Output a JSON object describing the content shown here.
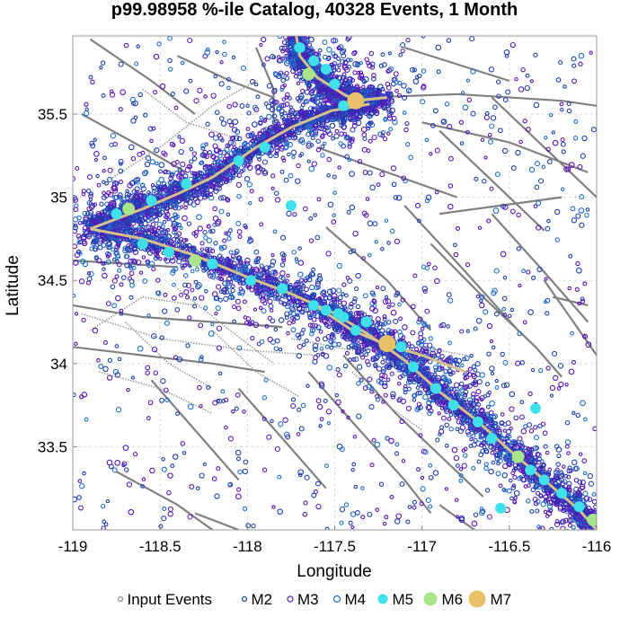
{
  "chart_data": {
    "type": "scatter",
    "title": "p99.98958 %-ile Catalog, 40328 Events, 1 Month",
    "xlabel": "Longitude",
    "ylabel": "Latitude",
    "xlim": [
      -119,
      -116
    ],
    "ylim": [
      33,
      35.97
    ],
    "xticks": [
      -119,
      -118.5,
      -118,
      -117.5,
      -117,
      -116.5,
      -116
    ],
    "xtick_labels": [
      "-119",
      "-118.5",
      "-118",
      "-117.5",
      "-117",
      "-116.5",
      "-116"
    ],
    "yticks": [
      33.5,
      34,
      34.5,
      35,
      35.5
    ],
    "ytick_labels": [
      "33.5",
      "34",
      "34.5",
      "35",
      "35.5"
    ],
    "grid": true,
    "legend_position": "bottom",
    "colors": {
      "input": "#888888",
      "m2": "#1e3fb0",
      "m3": "#5a17b8",
      "m4": "#1e6fcf",
      "m5": "#3ee0ea",
      "m6": "#a8e58a",
      "m7": "#e7c068",
      "fault": "#808080",
      "rupture": "#d7c18a"
    },
    "series": [
      {
        "name": "Input Events",
        "marker": "open-circle-small"
      },
      {
        "name": "M2",
        "marker": "open-circle"
      },
      {
        "name": "M3",
        "marker": "open-circle"
      },
      {
        "name": "M4",
        "marker": "open-circle"
      },
      {
        "name": "M5",
        "marker": "filled-circle"
      },
      {
        "name": "M6",
        "marker": "filled-circle"
      },
      {
        "name": "M7",
        "marker": "filled-circle-large"
      }
    ],
    "m7_events": [
      {
        "lon": -117.38,
        "lat": 35.58
      },
      {
        "lon": -117.2,
        "lat": 34.12
      }
    ],
    "m6_events": [
      {
        "lon": -117.65,
        "lat": 35.74
      },
      {
        "lon": -118.68,
        "lat": 34.93
      },
      {
        "lon": -118.3,
        "lat": 34.62
      },
      {
        "lon": -116.45,
        "lat": 33.44
      },
      {
        "lon": -116.02,
        "lat": 33.06
      }
    ],
    "m5_events": [
      {
        "lon": -117.7,
        "lat": 35.9
      },
      {
        "lon": -117.62,
        "lat": 35.82
      },
      {
        "lon": -117.55,
        "lat": 35.77
      },
      {
        "lon": -117.5,
        "lat": 35.68
      },
      {
        "lon": -117.45,
        "lat": 35.55
      },
      {
        "lon": -117.9,
        "lat": 35.3
      },
      {
        "lon": -118.05,
        "lat": 35.22
      },
      {
        "lon": -118.35,
        "lat": 35.08
      },
      {
        "lon": -118.55,
        "lat": 34.98
      },
      {
        "lon": -118.75,
        "lat": 34.9
      },
      {
        "lon": -117.75,
        "lat": 34.95
      },
      {
        "lon": -118.6,
        "lat": 34.72
      },
      {
        "lon": -118.45,
        "lat": 34.67
      },
      {
        "lon": -118.2,
        "lat": 34.6
      },
      {
        "lon": -117.98,
        "lat": 34.5
      },
      {
        "lon": -117.8,
        "lat": 34.45
      },
      {
        "lon": -117.62,
        "lat": 34.35
      },
      {
        "lon": -117.45,
        "lat": 34.28
      },
      {
        "lon": -117.38,
        "lat": 34.2
      },
      {
        "lon": -117.32,
        "lat": 34.25
      },
      {
        "lon": -117.12,
        "lat": 34.1
      },
      {
        "lon": -117.05,
        "lat": 33.98
      },
      {
        "lon": -116.92,
        "lat": 33.85
      },
      {
        "lon": -116.82,
        "lat": 33.75
      },
      {
        "lon": -116.68,
        "lat": 33.65
      },
      {
        "lon": -116.6,
        "lat": 33.55
      },
      {
        "lon": -116.38,
        "lat": 33.36
      },
      {
        "lon": -116.3,
        "lat": 33.3
      },
      {
        "lon": -116.2,
        "lat": 33.22
      },
      {
        "lon": -116.1,
        "lat": 33.14
      },
      {
        "lon": -116.35,
        "lat": 33.73
      },
      {
        "lon": -116.55,
        "lat": 33.13
      },
      {
        "lon": -117.48,
        "lat": 34.3
      },
      {
        "lon": -117.55,
        "lat": 34.32
      }
    ],
    "rupture_traces": [
      [
        [
          -117.72,
          35.97
        ],
        [
          -117.7,
          35.85
        ],
        [
          -117.6,
          35.72
        ],
        [
          -117.45,
          35.62
        ],
        [
          -117.38,
          35.58
        ],
        [
          -117.2,
          35.6
        ]
      ],
      [
        [
          -118.9,
          34.81
        ],
        [
          -118.75,
          34.87
        ],
        [
          -118.6,
          34.93
        ],
        [
          -118.4,
          35.02
        ],
        [
          -118.2,
          35.12
        ],
        [
          -117.95,
          35.3
        ],
        [
          -117.75,
          35.42
        ],
        [
          -117.52,
          35.52
        ],
        [
          -117.3,
          35.56
        ]
      ],
      [
        [
          -118.9,
          34.81
        ],
        [
          -118.6,
          34.75
        ],
        [
          -118.3,
          34.65
        ],
        [
          -118.0,
          34.52
        ],
        [
          -117.75,
          34.42
        ],
        [
          -117.5,
          34.3
        ],
        [
          -117.3,
          34.17
        ],
        [
          -117.1,
          34.02
        ],
        [
          -116.9,
          33.83
        ],
        [
          -116.7,
          33.67
        ],
        [
          -116.5,
          33.48
        ],
        [
          -116.3,
          33.3
        ],
        [
          -116.1,
          33.12
        ],
        [
          -116.0,
          33.0
        ]
      ],
      [
        [
          -117.6,
          34.34
        ],
        [
          -117.4,
          34.2
        ],
        [
          -117.22,
          34.12
        ],
        [
          -117.0,
          34.05
        ],
        [
          -116.75,
          33.95
        ]
      ]
    ],
    "faults": [
      [
        [
          -117.3,
          35.6
        ],
        [
          -116.8,
          35.62
        ],
        [
          -116.2,
          35.58
        ],
        [
          -116.0,
          35.55
        ]
      ],
      [
        [
          -117.0,
          35.45
        ],
        [
          -116.5,
          35.33
        ],
        [
          -116.05,
          35.15
        ]
      ],
      [
        [
          -117.6,
          35.3
        ],
        [
          -117.2,
          35.15
        ],
        [
          -116.8,
          35.0
        ]
      ],
      [
        [
          -116.9,
          35.4
        ],
        [
          -116.6,
          35.1
        ],
        [
          -116.3,
          34.8
        ]
      ],
      [
        [
          -116.6,
          35.6
        ],
        [
          -116.3,
          35.3
        ],
        [
          -116.0,
          35.0
        ]
      ],
      [
        [
          -117.1,
          34.95
        ],
        [
          -116.75,
          34.55
        ],
        [
          -116.45,
          34.2
        ]
      ],
      [
        [
          -116.95,
          34.72
        ],
        [
          -116.65,
          34.4
        ],
        [
          -116.35,
          34.1
        ],
        [
          -116.2,
          33.92
        ]
      ],
      [
        [
          -116.6,
          34.9
        ],
        [
          -116.3,
          34.55
        ],
        [
          -116.05,
          34.25
        ]
      ],
      [
        [
          -116.3,
          34.5
        ],
        [
          -116.1,
          34.2
        ],
        [
          -116.0,
          34.05
        ]
      ],
      [
        [
          -116.9,
          34.9
        ],
        [
          -116.55,
          34.95
        ],
        [
          -116.2,
          35.0
        ]
      ],
      [
        [
          -117.55,
          34.82
        ],
        [
          -117.2,
          34.5
        ],
        [
          -116.95,
          34.2
        ]
      ],
      [
        [
          -119.0,
          34.62
        ],
        [
          -118.7,
          34.6
        ],
        [
          -118.4,
          34.58
        ]
      ],
      [
        [
          -119.0,
          34.35
        ],
        [
          -118.6,
          34.28
        ],
        [
          -118.2,
          34.25
        ],
        [
          -117.8,
          34.22
        ]
      ],
      [
        [
          -119.0,
          34.1
        ],
        [
          -118.6,
          34.05
        ],
        [
          -118.2,
          34.0
        ],
        [
          -117.9,
          33.95
        ]
      ],
      [
        [
          -118.55,
          33.9
        ],
        [
          -118.3,
          33.6
        ],
        [
          -118.05,
          33.3
        ]
      ],
      [
        [
          -118.05,
          33.85
        ],
        [
          -117.8,
          33.55
        ],
        [
          -117.55,
          33.25
        ]
      ],
      [
        [
          -117.65,
          33.95
        ],
        [
          -117.4,
          33.65
        ],
        [
          -117.1,
          33.3
        ],
        [
          -116.95,
          33.1
        ]
      ],
      [
        [
          -117.45,
          34.05
        ],
        [
          -117.15,
          33.7
        ],
        [
          -116.9,
          33.45
        ],
        [
          -116.65,
          33.2
        ]
      ],
      [
        [
          -118.95,
          35.5
        ],
        [
          -118.6,
          35.3
        ],
        [
          -118.35,
          35.15
        ]
      ],
      [
        [
          -118.9,
          35.95
        ],
        [
          -118.55,
          35.7
        ],
        [
          -118.3,
          35.5
        ]
      ],
      [
        [
          -117.95,
          35.9
        ],
        [
          -117.85,
          35.65
        ],
        [
          -117.85,
          35.4
        ]
      ],
      [
        [
          -117.1,
          35.9
        ],
        [
          -116.8,
          35.8
        ],
        [
          -116.5,
          35.7
        ]
      ],
      [
        [
          -118.75,
          33.35
        ],
        [
          -118.4,
          33.15
        ],
        [
          -118.2,
          33.0
        ]
      ],
      [
        [
          -118.3,
          33.1
        ],
        [
          -118.05,
          33.0
        ]
      ],
      [
        [
          -116.9,
          33.15
        ],
        [
          -116.7,
          33.0
        ]
      ],
      [
        [
          -116.25,
          34.4
        ],
        [
          -116.05,
          34.35
        ]
      ],
      [
        [
          -118.4,
          35.85
        ],
        [
          -118.1,
          35.7
        ],
        [
          -117.85,
          35.6
        ]
      ]
    ],
    "minor_faults": [
      [
        [
          -118.95,
          34.3
        ],
        [
          -118.5,
          34.15
        ],
        [
          -118.0,
          34.08
        ],
        [
          -117.6,
          34.05
        ]
      ],
      [
        [
          -118.9,
          34.2
        ],
        [
          -118.6,
          34.4
        ],
        [
          -118.3,
          34.35
        ]
      ],
      [
        [
          -118.7,
          34.25
        ],
        [
          -118.45,
          34.0
        ],
        [
          -118.2,
          33.85
        ]
      ],
      [
        [
          -118.2,
          34.2
        ],
        [
          -117.95,
          33.95
        ],
        [
          -117.7,
          33.8
        ]
      ],
      [
        [
          -117.75,
          34.15
        ],
        [
          -117.4,
          34.08
        ],
        [
          -117.0,
          34.1
        ],
        [
          -116.75,
          34.05
        ]
      ],
      [
        [
          -118.4,
          34.45
        ],
        [
          -118.1,
          34.2
        ],
        [
          -117.85,
          34.0
        ]
      ],
      [
        [
          -118.85,
          33.95
        ],
        [
          -118.5,
          33.85
        ],
        [
          -118.2,
          33.7
        ]
      ],
      [
        [
          -117.4,
          33.95
        ],
        [
          -117.2,
          33.75
        ],
        [
          -117.0,
          33.6
        ]
      ],
      [
        [
          -118.8,
          35.1
        ],
        [
          -118.5,
          35.3
        ],
        [
          -118.2,
          35.55
        ],
        [
          -117.95,
          35.7
        ]
      ],
      [
        [
          -118.6,
          35.65
        ],
        [
          -118.35,
          35.45
        ],
        [
          -118.05,
          35.35
        ]
      ]
    ]
  }
}
